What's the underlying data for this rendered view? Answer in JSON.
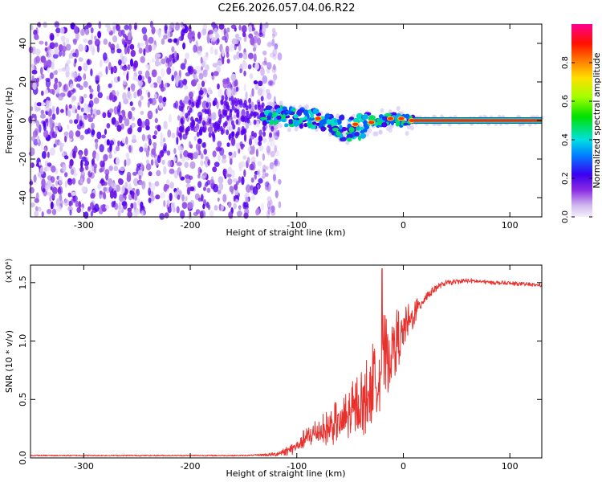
{
  "title": "C2E6.2026.057.04.06.R22",
  "chart_data": [
    {
      "type": "heatmap",
      "xlabel": "Height of straight line (km)",
      "ylabel": "Frequency (Hz)",
      "xlim": [
        -350,
        130
      ],
      "ylim": [
        -50,
        50
      ],
      "x_ticks": [
        -300,
        -200,
        -100,
        0,
        100
      ],
      "y_ticks": [
        -40,
        -20,
        0,
        20,
        40
      ],
      "noise_region_x": [
        -350,
        -125
      ],
      "signal_track": [
        {
          "x": -130,
          "y": 3
        },
        {
          "x": -110,
          "y": 2
        },
        {
          "x": -90,
          "y": 1
        },
        {
          "x": -80,
          "y": 1
        },
        {
          "x": -65,
          "y": -3
        },
        {
          "x": -50,
          "y": -5
        },
        {
          "x": -40,
          "y": -3
        },
        {
          "x": -30,
          "y": -1
        },
        {
          "x": -20,
          "y": 0
        },
        {
          "x": -10,
          "y": 1
        },
        {
          "x": 0,
          "y": 0
        },
        {
          "x": 10,
          "y": 0
        },
        {
          "x": 130,
          "y": 0
        }
      ],
      "colorbar": {
        "label": "Normalized spectral amplitude",
        "range": [
          0,
          1
        ],
        "ticks": [
          0.0,
          0.2,
          0.4,
          0.6,
          0.8
        ]
      }
    },
    {
      "type": "line",
      "xlabel": "Height of straight line (km)",
      "ylabel": "SNR (10 * v/v)",
      "scale_label": "(x10⁴)",
      "xlim": [
        -350,
        130
      ],
      "ylim": [
        0,
        1.65
      ],
      "x_ticks": [
        -300,
        -200,
        -100,
        0,
        100
      ],
      "y_ticks": [
        0.0,
        0.5,
        1.0,
        1.5
      ],
      "color": "#e8312d",
      "envelope": [
        {
          "x": -350,
          "y": 0.02
        },
        {
          "x": -150,
          "y": 0.02
        },
        {
          "x": -120,
          "y": 0.03
        },
        {
          "x": -105,
          "y": 0.08
        },
        {
          "x": -95,
          "y": 0.15
        },
        {
          "x": -85,
          "y": 0.22
        },
        {
          "x": -75,
          "y": 0.25
        },
        {
          "x": -65,
          "y": 0.3
        },
        {
          "x": -55,
          "y": 0.35
        },
        {
          "x": -45,
          "y": 0.45
        },
        {
          "x": -35,
          "y": 0.55
        },
        {
          "x": -28,
          "y": 0.7
        },
        {
          "x": -20,
          "y": 0.85
        },
        {
          "x": -10,
          "y": 1.0
        },
        {
          "x": 0,
          "y": 1.1
        },
        {
          "x": 10,
          "y": 1.25
        },
        {
          "x": 20,
          "y": 1.38
        },
        {
          "x": 30,
          "y": 1.46
        },
        {
          "x": 40,
          "y": 1.5
        },
        {
          "x": 60,
          "y": 1.52
        },
        {
          "x": 90,
          "y": 1.5
        },
        {
          "x": 130,
          "y": 1.48
        }
      ],
      "noise_amplitude": [
        {
          "x": -350,
          "a": 0.01
        },
        {
          "x": -140,
          "a": 0.01
        },
        {
          "x": -110,
          "a": 0.05
        },
        {
          "x": -90,
          "a": 0.12
        },
        {
          "x": -70,
          "a": 0.2
        },
        {
          "x": -50,
          "a": 0.3
        },
        {
          "x": -30,
          "a": 0.45
        },
        {
          "x": -20,
          "a": 0.5
        },
        {
          "x": -10,
          "a": 0.4
        },
        {
          "x": 0,
          "a": 0.25
        },
        {
          "x": 15,
          "a": 0.1
        },
        {
          "x": 35,
          "a": 0.03
        },
        {
          "x": 130,
          "a": 0.02
        }
      ],
      "peak": {
        "x": -20,
        "y": 1.62
      }
    }
  ]
}
